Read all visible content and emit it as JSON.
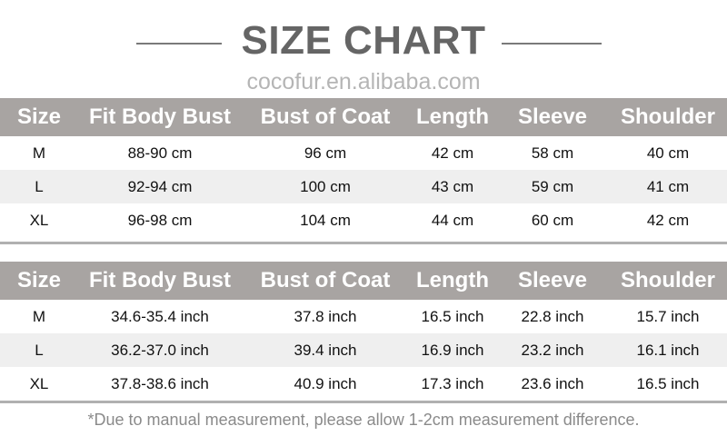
{
  "title": "SIZE CHART",
  "watermark": "cocofur.en.alibaba.com",
  "headers": [
    "Size",
    "Fit Body Bust",
    "Bust of Coat",
    "Length",
    "Sleeve",
    "Shoulder"
  ],
  "cm_rows": [
    [
      "M",
      "88-90 cm",
      "96 cm",
      "42 cm",
      "58 cm",
      "40 cm"
    ],
    [
      "L",
      "92-94 cm",
      "100 cm",
      "43 cm",
      "59 cm",
      "41 cm"
    ],
    [
      "XL",
      "96-98 cm",
      "104 cm",
      "44 cm",
      "60 cm",
      "42 cm"
    ]
  ],
  "inch_rows": [
    [
      "M",
      "34.6-35.4 inch",
      "37.8 inch",
      "16.5 inch",
      "22.8 inch",
      "15.7 inch"
    ],
    [
      "L",
      "36.2-37.0 inch",
      "39.4 inch",
      "16.9 inch",
      "23.2 inch",
      "16.1 inch"
    ],
    [
      "XL",
      "37.8-38.6 inch",
      "40.9 inch",
      "17.3 inch",
      "23.6 inch",
      "16.5 inch"
    ]
  ],
  "note": "*Due to manual measurement, please allow 1-2cm measurement difference.",
  "colors": {
    "header_bg": "#a8a4a2",
    "title": "#656565",
    "alt_row": "#efefef"
  }
}
